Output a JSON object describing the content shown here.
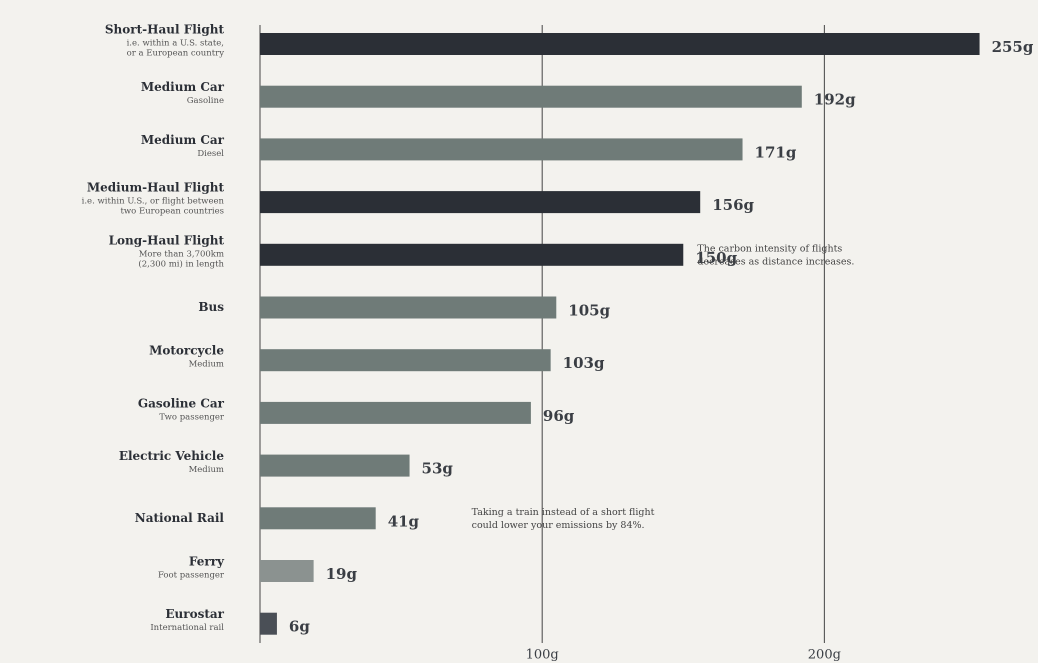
{
  "chart_data": {
    "type": "hbar",
    "categories": [
      "Short-Haul Flight",
      "Medium Car",
      "Medium Car",
      "Medium-Haul Flight",
      "Long-Haul Flight",
      "Bus",
      "Motorcycle",
      "Gasoline Car",
      "Electric Vehicle",
      "National Rail",
      "Ferry",
      "Eurostar"
    ],
    "sublabels": [
      [
        "i.e. within a U.S. state,",
        "or a European country"
      ],
      [
        "Gasoline"
      ],
      [
        "Diesel"
      ],
      [
        "i.e. within U.S., or flight between",
        "two European countries"
      ],
      [
        "More than 3,700km",
        "(2,300 mi) in length"
      ],
      [],
      [
        "Medium"
      ],
      [
        "Two passenger"
      ],
      [
        "Medium"
      ],
      [],
      [
        "Foot passenger"
      ],
      [
        "International rail"
      ]
    ],
    "values": [
      255,
      192,
      171,
      156,
      150,
      105,
      103,
      96,
      53,
      41,
      19,
      6
    ],
    "value_labels": [
      "255g",
      "192g",
      "171g",
      "156g",
      "150g",
      "105g",
      "103g",
      "96g",
      "53g",
      "41g",
      "19g",
      "6g"
    ],
    "colors": [
      "#2b2f36",
      "#6f7b78",
      "#6f7b78",
      "#2b2f36",
      "#2b2f36",
      "#6f7b78",
      "#6f7b78",
      "#6f7b78",
      "#6f7b78",
      "#6f7b78",
      "#8b9290",
      "#4a4f56"
    ],
    "xlim": [
      0,
      275
    ],
    "xticks": [
      {
        "value": 100,
        "label": "100g"
      },
      {
        "value": 200,
        "label": "200g"
      }
    ],
    "grid": true,
    "annotations": [
      {
        "lines": [
          "The carbon intensity of flights",
          "decreases as distance increases."
        ],
        "x": 155,
        "row": 4
      },
      {
        "lines": [
          "Taking a train instead of a short flight",
          "could lower your emissions by 84%."
        ],
        "x": 75,
        "row": 9
      }
    ]
  }
}
